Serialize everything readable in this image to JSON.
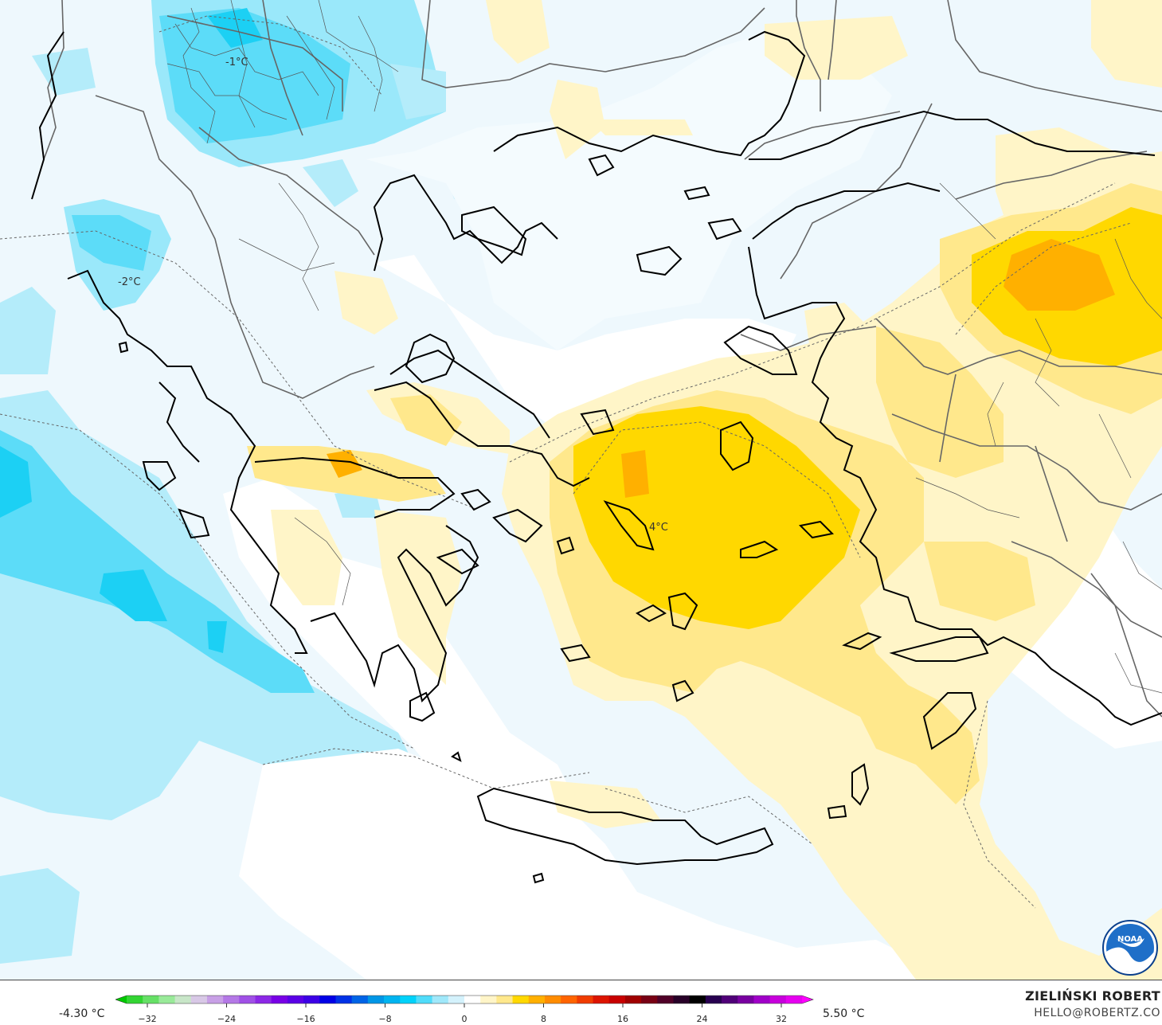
{
  "map": {
    "labels": [
      {
        "text": "-1°C",
        "name": "temp-label-north"
      },
      {
        "text": "-2°C",
        "name": "temp-label-west"
      },
      {
        "text": "4°C",
        "name": "temp-label-aegean"
      }
    ]
  },
  "legend": {
    "min_label": "-4.30 °C",
    "max_label": "5.50 °C",
    "ticks": [
      "−32",
      "−24",
      "−16",
      "−8",
      "0",
      "8",
      "16",
      "24",
      "32"
    ],
    "colors": [
      "#00c800",
      "#33d533",
      "#66e066",
      "#99ea99",
      "#c8e6c8",
      "#d8c8e6",
      "#c8a0e6",
      "#b478e6",
      "#a050e6",
      "#8c28e6",
      "#7800e6",
      "#5a00e6",
      "#3c00e6",
      "#0000e6",
      "#0032e6",
      "#0064e6",
      "#0096e6",
      "#00b4f0",
      "#00d2fa",
      "#50dcfa",
      "#a0e8fa",
      "#d4f2fc",
      "#ffffff",
      "#fff5c8",
      "#ffe88c",
      "#ffd800",
      "#ffb000",
      "#ff8c00",
      "#ff6400",
      "#f03c00",
      "#dc1400",
      "#c80000",
      "#a00000",
      "#780014",
      "#500028",
      "#280028",
      "#000000",
      "#280050",
      "#500078",
      "#7800a0",
      "#a000c8",
      "#c800dc",
      "#e600f0",
      "#ff00ff"
    ]
  },
  "credit": {
    "name": "ZIELIŃSKI ROBERT",
    "email": "HELLO@ROBERTZ.CO"
  },
  "logo": {
    "text": "NOAA"
  }
}
